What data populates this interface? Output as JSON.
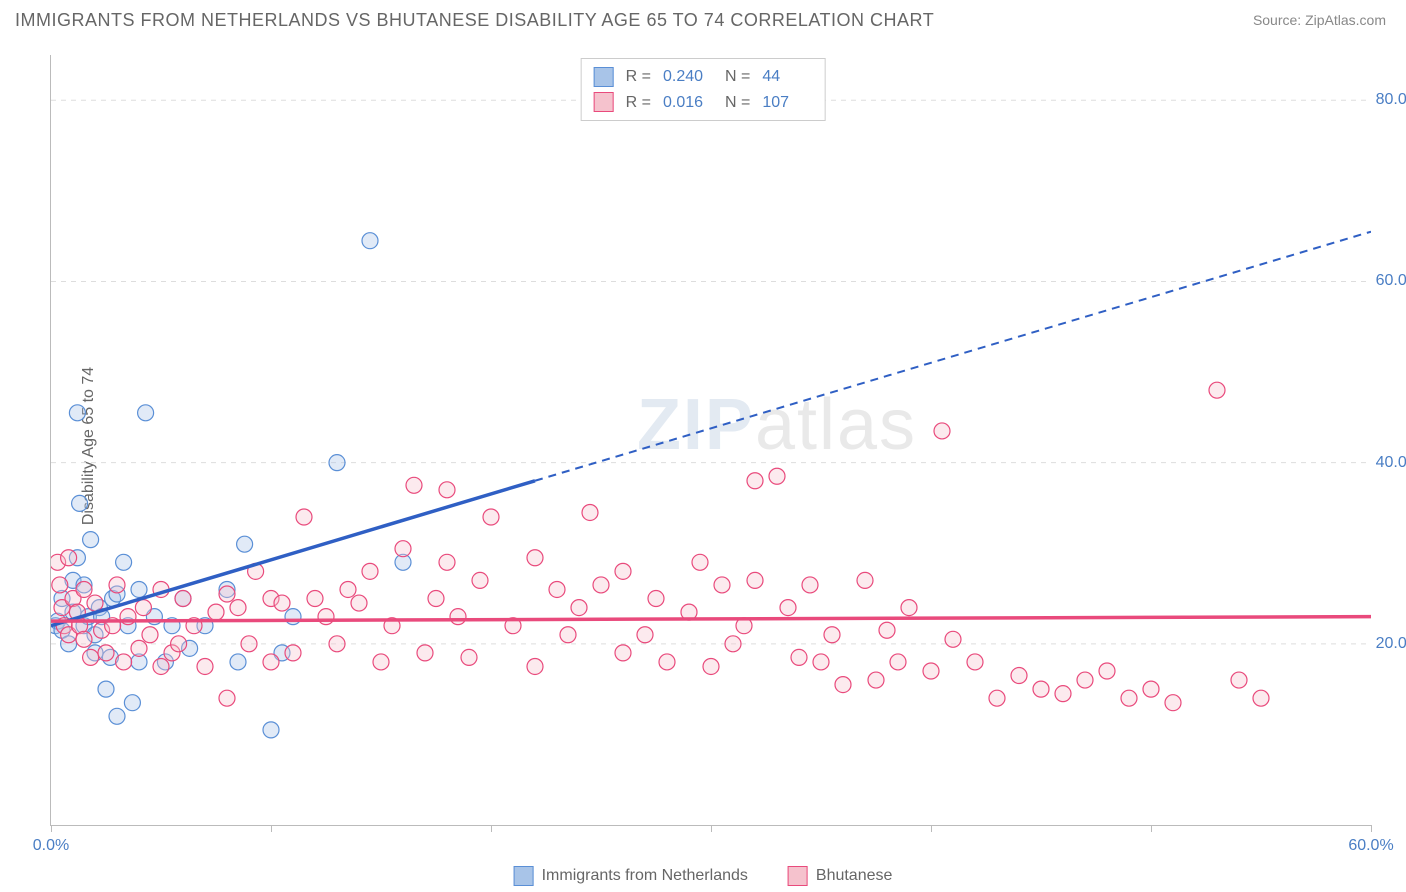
{
  "title": "IMMIGRANTS FROM NETHERLANDS VS BHUTANESE DISABILITY AGE 65 TO 74 CORRELATION CHART",
  "source": "Source: ZipAtlas.com",
  "ylabel": "Disability Age 65 to 74",
  "watermark_zip": "ZIP",
  "watermark_atlas": "atlas",
  "chart": {
    "type": "scatter",
    "xlim": [
      0,
      60
    ],
    "ylim": [
      0,
      85
    ],
    "xtick_positions": [
      0,
      10,
      20,
      30,
      40,
      50,
      60
    ],
    "xtick_labels_shown": {
      "0": "0.0%",
      "60": "60.0%"
    },
    "ytick_positions": [
      20,
      40,
      60,
      80
    ],
    "ytick_labels": [
      "20.0%",
      "40.0%",
      "60.0%",
      "80.0%"
    ],
    "grid_color": "#dddddd",
    "axis_color": "#bbbbbb",
    "tick_label_color": "#4a7ec4",
    "background_color": "#ffffff",
    "marker_radius": 8,
    "marker_stroke_width": 1.2,
    "marker_fill_opacity": 0.35,
    "trend_line_width": 3.5,
    "trend_dash": "8,6"
  },
  "series": [
    {
      "name": "Immigrants from Netherlands",
      "color_fill": "#a8c4e8",
      "color_stroke": "#5a8fd6",
      "trend_color": "#2f5fc4",
      "R": "0.240",
      "N": "44",
      "trend_start": [
        0,
        22
      ],
      "trend_solid_end": [
        22,
        38
      ],
      "trend_end": [
        60,
        65.5
      ],
      "points": [
        [
          0.2,
          22.0
        ],
        [
          0.3,
          22.5
        ],
        [
          0.5,
          21.5
        ],
        [
          0.5,
          25.0
        ],
        [
          0.8,
          20.0
        ],
        [
          1.0,
          23.5
        ],
        [
          1.0,
          27.0
        ],
        [
          1.2,
          29.5
        ],
        [
          1.2,
          45.5
        ],
        [
          1.3,
          35.5
        ],
        [
          1.5,
          22.0
        ],
        [
          1.5,
          26.5
        ],
        [
          1.7,
          23.0
        ],
        [
          1.8,
          31.5
        ],
        [
          2.0,
          21.0
        ],
        [
          2.0,
          19.0
        ],
        [
          2.2,
          24.0
        ],
        [
          2.3,
          23.0
        ],
        [
          2.5,
          15.0
        ],
        [
          2.7,
          18.5
        ],
        [
          2.8,
          25.0
        ],
        [
          3.0,
          12.0
        ],
        [
          3.0,
          25.5
        ],
        [
          3.3,
          29.0
        ],
        [
          3.5,
          22.0
        ],
        [
          3.7,
          13.5
        ],
        [
          4.0,
          26.0
        ],
        [
          4.0,
          18.0
        ],
        [
          4.3,
          45.5
        ],
        [
          4.7,
          23.0
        ],
        [
          5.2,
          18.0
        ],
        [
          5.5,
          22.0
        ],
        [
          6.0,
          25.0
        ],
        [
          6.3,
          19.5
        ],
        [
          7.0,
          22.0
        ],
        [
          8.0,
          26.0
        ],
        [
          8.5,
          18.0
        ],
        [
          8.8,
          31.0
        ],
        [
          10.0,
          10.5
        ],
        [
          10.5,
          19.0
        ],
        [
          11.0,
          23.0
        ],
        [
          13.0,
          40.0
        ],
        [
          14.5,
          64.5
        ],
        [
          16.0,
          29.0
        ]
      ]
    },
    {
      "name": "Bhutanese",
      "color_fill": "#f5c2cd",
      "color_stroke": "#e94a7c",
      "trend_color": "#e94a7c",
      "R": "0.016",
      "N": "107",
      "trend_start": [
        0,
        22.5
      ],
      "trend_solid_end": [
        60,
        23.0
      ],
      "trend_end": [
        60,
        23.0
      ],
      "points": [
        [
          0.3,
          29.0
        ],
        [
          0.4,
          26.5
        ],
        [
          0.5,
          24.0
        ],
        [
          0.6,
          22.0
        ],
        [
          0.8,
          29.5
        ],
        [
          0.8,
          21.0
        ],
        [
          1.0,
          25.0
        ],
        [
          1.2,
          23.5
        ],
        [
          1.3,
          22.0
        ],
        [
          1.5,
          20.5
        ],
        [
          1.5,
          26.0
        ],
        [
          1.8,
          18.5
        ],
        [
          2.0,
          24.5
        ],
        [
          2.3,
          21.5
        ],
        [
          2.5,
          19.0
        ],
        [
          2.8,
          22.0
        ],
        [
          3.0,
          26.5
        ],
        [
          3.3,
          18.0
        ],
        [
          3.5,
          23.0
        ],
        [
          4.0,
          19.5
        ],
        [
          4.2,
          24.0
        ],
        [
          4.5,
          21.0
        ],
        [
          5.0,
          17.5
        ],
        [
          5.0,
          26.0
        ],
        [
          5.5,
          19.0
        ],
        [
          5.8,
          20.0
        ],
        [
          6.0,
          25.0
        ],
        [
          6.5,
          22.0
        ],
        [
          7.0,
          17.5
        ],
        [
          7.5,
          23.5
        ],
        [
          8.0,
          14.0
        ],
        [
          8.0,
          25.5
        ],
        [
          8.5,
          24.0
        ],
        [
          9.0,
          20.0
        ],
        [
          9.3,
          28.0
        ],
        [
          10.0,
          18.0
        ],
        [
          10.0,
          25.0
        ],
        [
          10.5,
          24.5
        ],
        [
          11.0,
          19.0
        ],
        [
          11.5,
          34.0
        ],
        [
          12.0,
          25.0
        ],
        [
          12.5,
          23.0
        ],
        [
          13.0,
          20.0
        ],
        [
          13.5,
          26.0
        ],
        [
          14.0,
          24.5
        ],
        [
          14.5,
          28.0
        ],
        [
          15.0,
          18.0
        ],
        [
          15.5,
          22.0
        ],
        [
          16.0,
          30.5
        ],
        [
          16.5,
          37.5
        ],
        [
          17.0,
          19.0
        ],
        [
          17.5,
          25.0
        ],
        [
          18.0,
          37.0
        ],
        [
          18.0,
          29.0
        ],
        [
          18.5,
          23.0
        ],
        [
          19.0,
          18.5
        ],
        [
          19.5,
          27.0
        ],
        [
          20.0,
          34.0
        ],
        [
          21.0,
          22.0
        ],
        [
          22.0,
          29.5
        ],
        [
          22.0,
          17.5
        ],
        [
          23.0,
          26.0
        ],
        [
          23.5,
          21.0
        ],
        [
          24.0,
          24.0
        ],
        [
          24.5,
          34.5
        ],
        [
          25.0,
          26.5
        ],
        [
          26.0,
          19.0
        ],
        [
          26.0,
          28.0
        ],
        [
          27.0,
          21.0
        ],
        [
          27.5,
          25.0
        ],
        [
          28.0,
          18.0
        ],
        [
          29.0,
          23.5
        ],
        [
          29.5,
          29.0
        ],
        [
          30.0,
          17.5
        ],
        [
          30.5,
          26.5
        ],
        [
          31.0,
          20.0
        ],
        [
          31.5,
          22.0
        ],
        [
          32.0,
          38.0
        ],
        [
          32.0,
          27.0
        ],
        [
          33.0,
          38.5
        ],
        [
          33.5,
          24.0
        ],
        [
          34.0,
          18.5
        ],
        [
          34.5,
          26.5
        ],
        [
          35.0,
          18.0
        ],
        [
          35.5,
          21.0
        ],
        [
          36.0,
          15.5
        ],
        [
          37.0,
          27.0
        ],
        [
          37.5,
          16.0
        ],
        [
          38.0,
          21.5
        ],
        [
          38.5,
          18.0
        ],
        [
          39.0,
          24.0
        ],
        [
          40.0,
          17.0
        ],
        [
          40.5,
          43.5
        ],
        [
          41.0,
          20.5
        ],
        [
          42.0,
          18.0
        ],
        [
          43.0,
          14.0
        ],
        [
          44.0,
          16.5
        ],
        [
          45.0,
          15.0
        ],
        [
          46.0,
          14.5
        ],
        [
          47.0,
          16.0
        ],
        [
          48.0,
          17.0
        ],
        [
          49.0,
          14.0
        ],
        [
          50.0,
          15.0
        ],
        [
          51.0,
          13.5
        ],
        [
          53.0,
          48.0
        ],
        [
          54.0,
          16.0
        ],
        [
          55.0,
          14.0
        ]
      ]
    }
  ],
  "legend_bottom": [
    {
      "label": "Immigrants from Netherlands",
      "fill": "#a8c4e8",
      "stroke": "#5a8fd6"
    },
    {
      "label": "Bhutanese",
      "fill": "#f5c2cd",
      "stroke": "#e94a7c"
    }
  ]
}
